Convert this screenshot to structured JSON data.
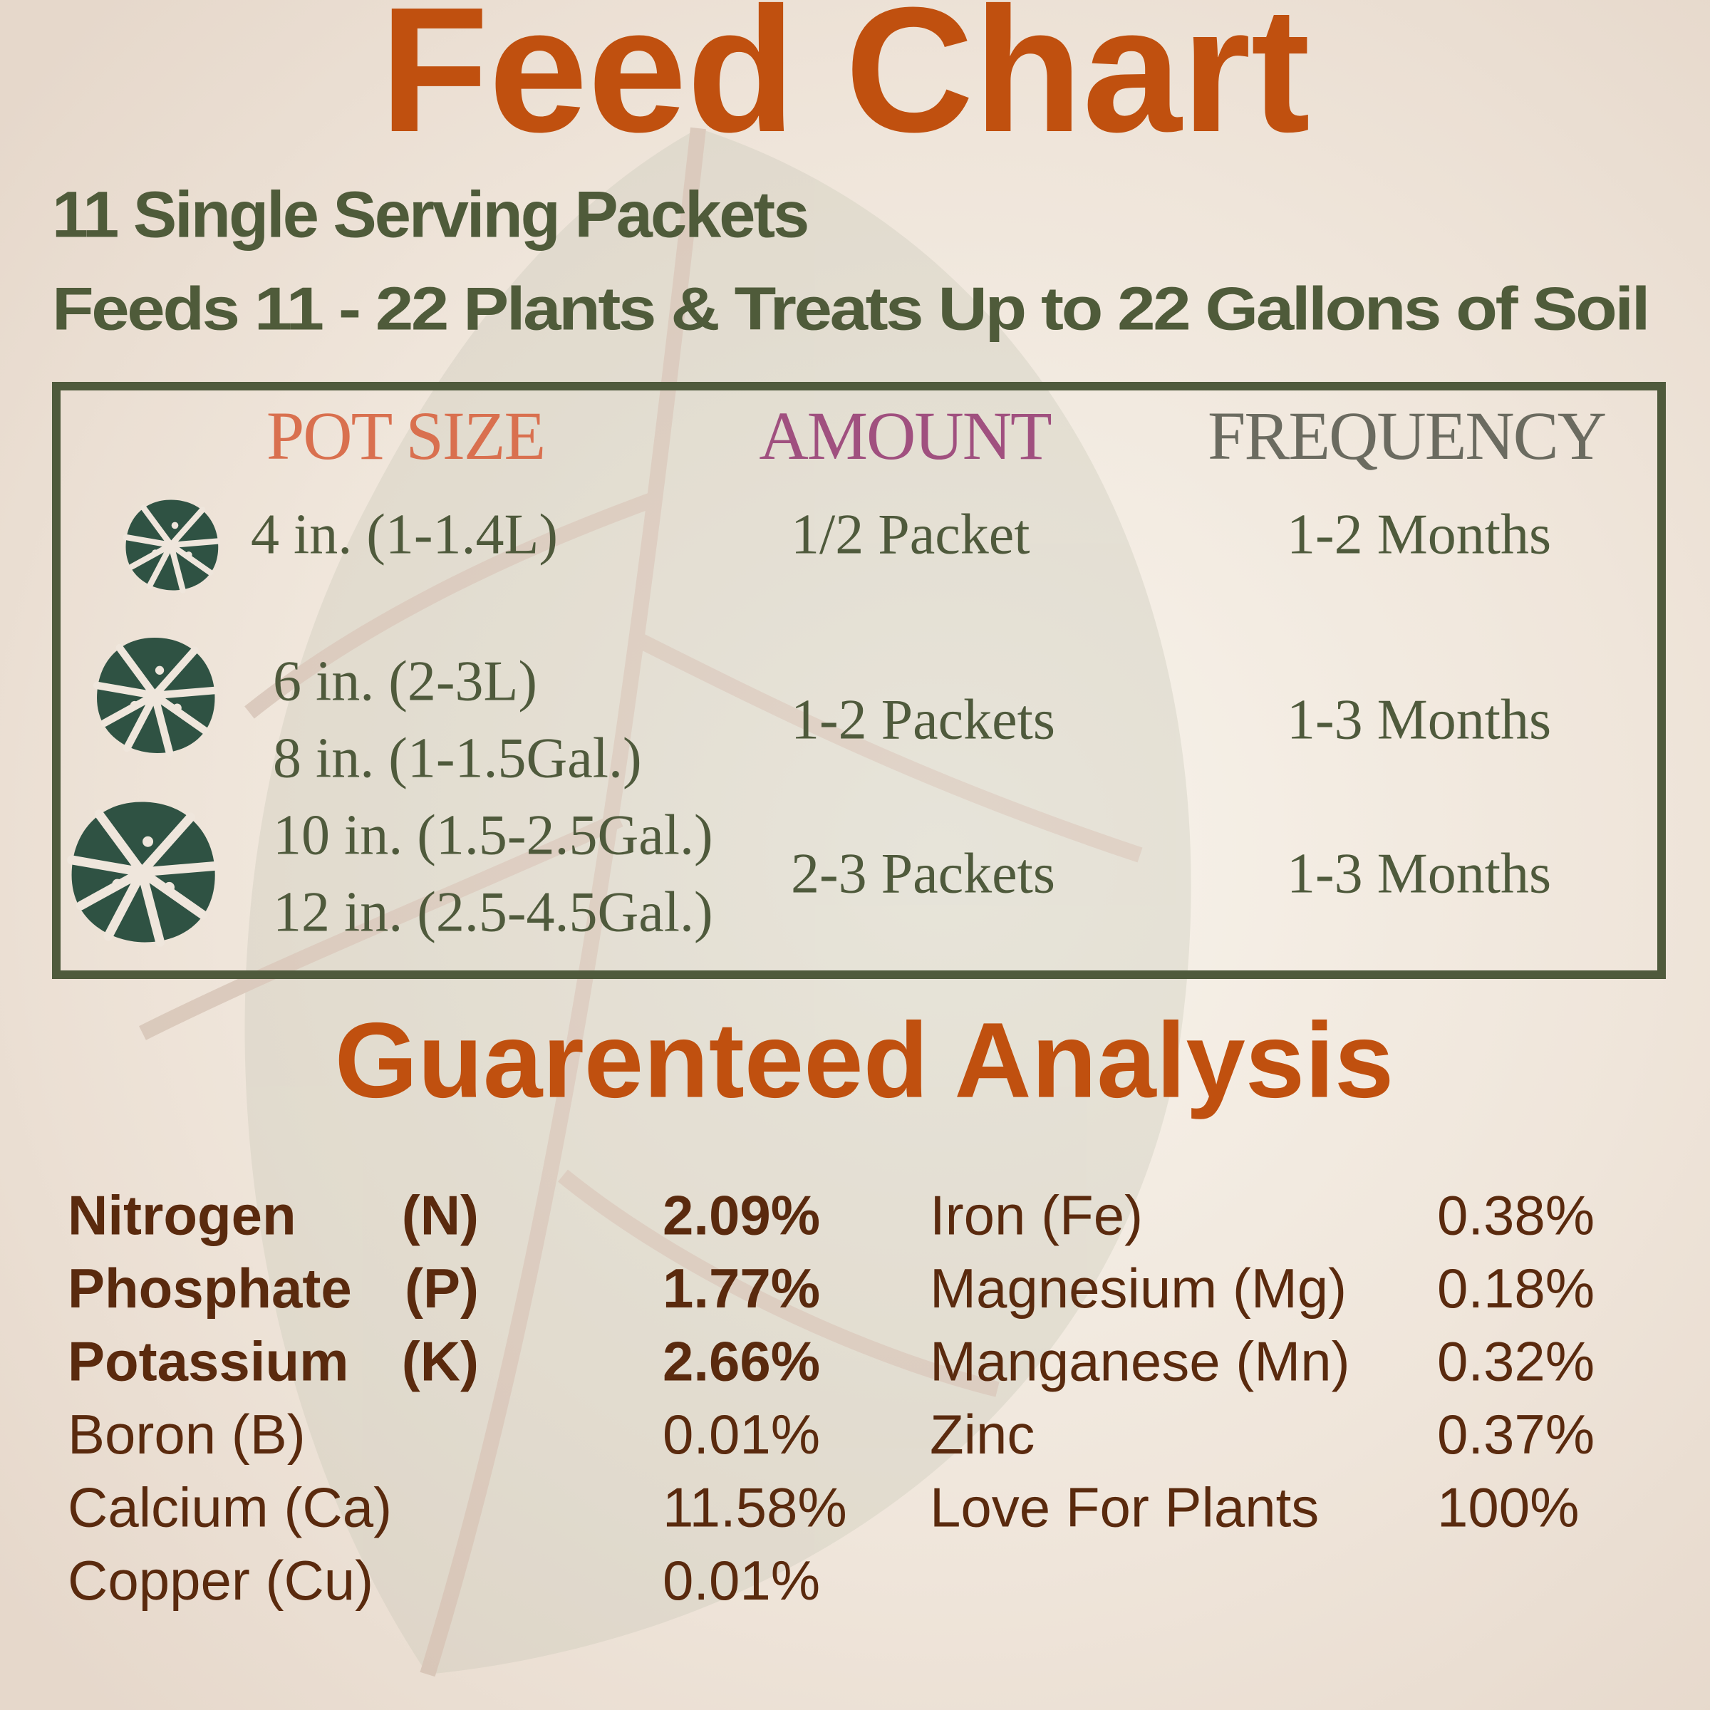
{
  "title": "Feed Chart",
  "subtitle": "11 Single Serving Packets",
  "tagline": "Feeds 11 - 22 Plants & Treats Up to 22 Gallons of Soil",
  "feed_table": {
    "headers": [
      "POT SIZE",
      "AMOUNT",
      "FREQUENCY"
    ],
    "rows": [
      {
        "pot_sizes": [
          "4 in. (1-1.4L)"
        ],
        "amount": "1/2 Packet",
        "frequency": "1-2 Months"
      },
      {
        "pot_sizes": [
          "6 in. (2-3L)",
          "8 in. (1-1.5Gal.)"
        ],
        "amount": "1-2 Packets",
        "frequency": "1-3 Months"
      },
      {
        "pot_sizes": [
          "10 in. (1.5-2.5Gal.)",
          "12 in. (2.5-4.5Gal.)"
        ],
        "amount": "2-3 Packets",
        "frequency": "1-3 Months"
      }
    ]
  },
  "analysis": {
    "title": "Guarenteed Analysis",
    "left": [
      {
        "name": "Nitrogen",
        "symbol": "(N)",
        "value": "2.09%",
        "bold": true
      },
      {
        "name": "Phosphate",
        "symbol": "(P)",
        "value": "1.77%",
        "bold": true
      },
      {
        "name": "Potassium",
        "symbol": "(K)",
        "value": "2.66%",
        "bold": true
      },
      {
        "name": "Boron (B)",
        "value": "0.01%"
      },
      {
        "name": "Calcium (Ca)",
        "value": "11.58%"
      },
      {
        "name": "Copper (Cu)",
        "value": "0.01%"
      }
    ],
    "right": [
      {
        "name": "Iron (Fe)",
        "value": "0.38%"
      },
      {
        "name": "Magnesium (Mg)",
        "value": "0.18%"
      },
      {
        "name": "Manganese (Mn)",
        "value": "0.32%"
      },
      {
        "name": "Zinc",
        "value": "0.37%"
      },
      {
        "name": "Love For Plants",
        "value": "100%"
      }
    ]
  }
}
